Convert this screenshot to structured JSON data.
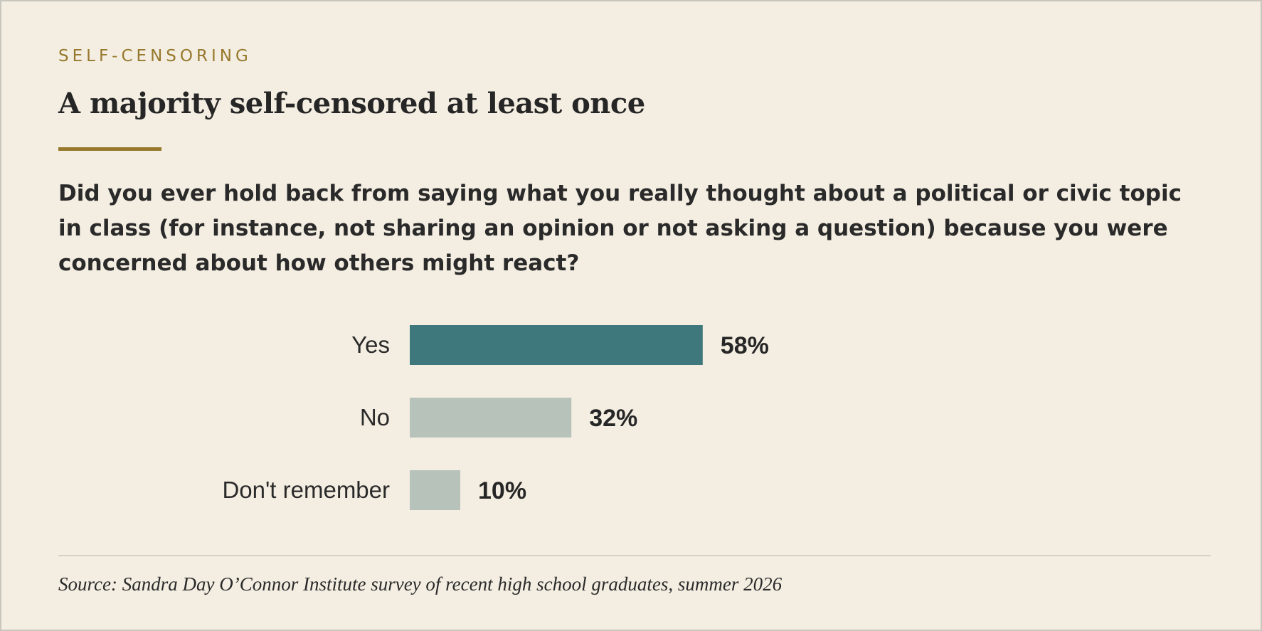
{
  "kicker": "SELF-CENSORING",
  "title": "A majority self-censored at least once",
  "question": "Did you ever hold back from saying what you really thought about a political or civic topic in class (for instance, not sharing an opinion or not asking a question) because you were concerned about how others might react?",
  "source": "Source: Sandra Day O’Connor Institute survey of recent high school graduates, summer 2026",
  "colors": {
    "highlight_bar": "#3e787c",
    "muted_bar": "#b7c2ba",
    "accent": "#97792d",
    "background": "#f4eee2"
  },
  "chart_data": {
    "type": "bar",
    "orientation": "horizontal",
    "categories": [
      "Yes",
      "No",
      "Don't remember"
    ],
    "values": [
      58,
      32,
      10
    ],
    "value_labels": [
      "58%",
      "32%",
      "10%"
    ],
    "unit": "%",
    "xlim": [
      0,
      100
    ],
    "highlight_index": 0,
    "grid": false,
    "legend": "none"
  }
}
